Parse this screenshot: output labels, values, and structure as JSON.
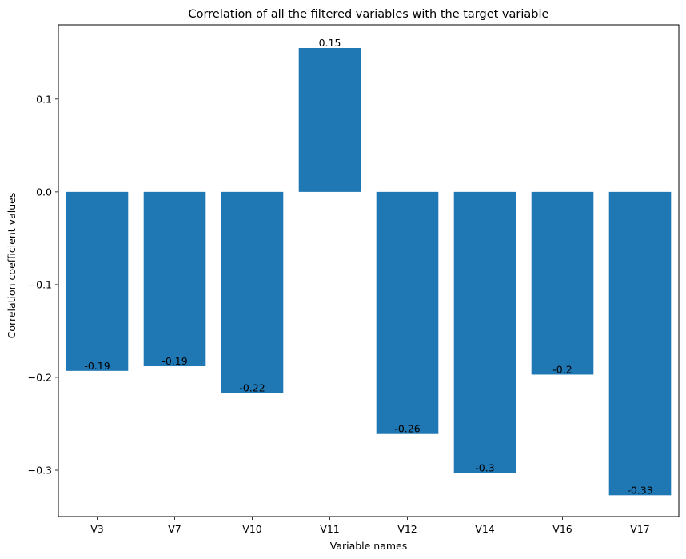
{
  "chart_data": {
    "type": "bar",
    "title": "Correlation of all the filtered variables with the target variable",
    "xlabel": "Variable names",
    "ylabel": "Correlation coefficient values",
    "categories": [
      "V3",
      "V7",
      "V10",
      "V11",
      "V12",
      "V14",
      "V16",
      "V17"
    ],
    "values": [
      -0.193,
      -0.188,
      -0.217,
      0.155,
      -0.261,
      -0.303,
      -0.197,
      -0.327
    ],
    "data_labels": [
      "-0.19",
      "-0.19",
      "-0.22",
      "0.15",
      "-0.26",
      "-0.3",
      "-0.2",
      "-0.33"
    ],
    "ylim": [
      -0.35,
      0.18
    ],
    "yticks": [
      -0.3,
      -0.2,
      -0.1,
      0.0,
      0.1
    ],
    "ytick_labels": [
      "−0.3",
      "−0.2",
      "−0.1",
      "0.0",
      "0.1"
    ],
    "bar_color": "#1f77b4",
    "grid": false,
    "legend": "none"
  }
}
